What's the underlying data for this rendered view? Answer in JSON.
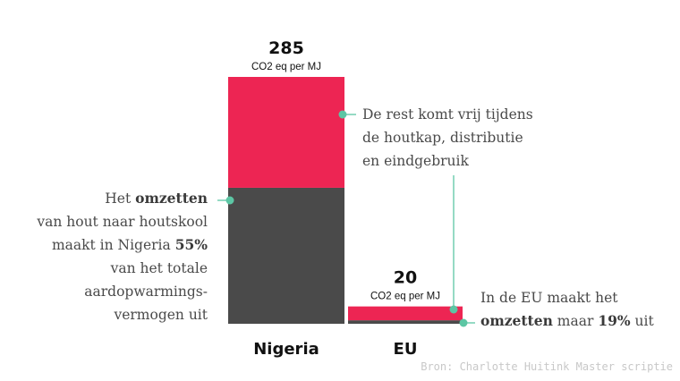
{
  "chart_data": {
    "type": "bar",
    "stacked": true,
    "categories": [
      "Nigeria",
      "EU"
    ],
    "totals": [
      285,
      20
    ],
    "total_unit": "CO2 eq per MJ",
    "series": [
      {
        "key": "conversion",
        "color": "#4a4a4a",
        "values": [
          157,
          4
        ]
      },
      {
        "key": "rest",
        "color": "#ed2553",
        "values": [
          128,
          16
        ]
      }
    ]
  },
  "annotations": {
    "nigeria_conversion": [
      {
        "parts": [
          {
            "t": "Het "
          },
          {
            "t": "omzetten",
            "b": true
          }
        ]
      },
      {
        "parts": [
          {
            "t": "van hout naar houtskool"
          }
        ]
      },
      {
        "parts": [
          {
            "t": "maakt in Nigeria "
          },
          {
            "t": "55%",
            "b": true
          }
        ]
      },
      {
        "parts": [
          {
            "t": "van het totale"
          }
        ]
      },
      {
        "parts": [
          {
            "t": "aardopwarmings-"
          }
        ]
      },
      {
        "parts": [
          {
            "t": "vermogen uit"
          }
        ]
      }
    ],
    "rest": [
      {
        "parts": [
          {
            "t": "De rest komt vrij tijdens"
          }
        ]
      },
      {
        "parts": [
          {
            "t": "de houtkap, distributie"
          }
        ]
      },
      {
        "parts": [
          {
            "t": "en eindgebruik"
          }
        ]
      }
    ],
    "eu_conversion": [
      {
        "parts": [
          {
            "t": "In de EU maakt het"
          }
        ]
      },
      {
        "parts": [
          {
            "t": "omzetten",
            "b": true
          },
          {
            "t": " maar "
          },
          {
            "t": "19%",
            "b": true
          },
          {
            "t": " uit"
          }
        ]
      }
    ]
  },
  "source": "Bron: Charlotte Huitink Master scriptie",
  "colors": {
    "connector": "#5cc6a4"
  }
}
